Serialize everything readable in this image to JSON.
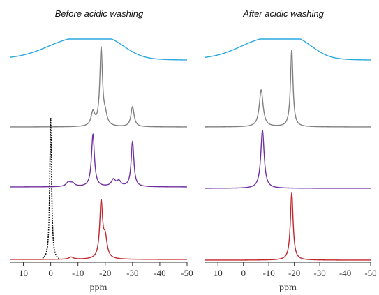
{
  "chart_data": [
    {
      "type": "line",
      "title": "Before acidic washing",
      "xlabel": "ppm",
      "ylabel": "",
      "xlim": [
        15,
        -50
      ],
      "xticks": [
        10,
        0,
        -10,
        -20,
        -30,
        -40,
        -50
      ],
      "tick_labels": [
        "10",
        "0",
        "-10",
        "-20",
        "-30",
        "-40",
        "-50"
      ],
      "series": [
        {
          "color": "#29a8df",
          "style": "solid",
          "peaks": [
            {
              "center": -10,
              "height": 1.0,
              "width": 11
            },
            {
              "center": -22,
              "height": 0.45,
              "width": 6
            }
          ],
          "baseline_left": 0.05,
          "baseline_right": 0.0
        },
        {
          "color": "#808080",
          "style": "solid",
          "peaks": [
            {
              "center": -15.5,
              "height": 0.18,
              "width": 0.8
            },
            {
              "center": -18.5,
              "height": 1.0,
              "width": 0.6
            },
            {
              "center": -20,
              "height": 0.12,
              "width": 0.8
            },
            {
              "center": -30,
              "height": 0.26,
              "width": 0.7
            }
          ]
        },
        {
          "color": "#7030a0",
          "style": "solid",
          "peaks": [
            {
              "center": -6.5,
              "height": 0.08,
              "width": 1.0
            },
            {
              "center": -8,
              "height": 0.06,
              "width": 1.0
            },
            {
              "center": -15.5,
              "height": 1.0,
              "width": 0.65
            },
            {
              "center": -23,
              "height": 0.13,
              "width": 0.9
            },
            {
              "center": -25,
              "height": 0.1,
              "width": 0.9
            },
            {
              "center": -30,
              "height": 0.86,
              "width": 0.6
            }
          ]
        },
        {
          "color": "#c0272d",
          "style": "solid",
          "peaks": [
            {
              "center": -7.5,
              "height": 0.04,
              "width": 1.0
            },
            {
              "center": -18.5,
              "height": 1.0,
              "width": 0.65
            },
            {
              "center": -20,
              "height": 0.35,
              "width": 0.8
            }
          ]
        },
        {
          "color": "#111111",
          "style": "dotted",
          "peaks": [
            {
              "center": 0,
              "height": 1.0,
              "width": 0.4
            }
          ]
        }
      ]
    },
    {
      "type": "line",
      "title": "After acidic washing",
      "xlabel": "ppm",
      "ylabel": "",
      "xlim": [
        15,
        -50
      ],
      "xticks": [
        10,
        0,
        -10,
        -20,
        -30,
        -40,
        -50
      ],
      "tick_labels": [
        "10",
        "0",
        "-10",
        "-20",
        "-30",
        "-40",
        "-50"
      ],
      "series": [
        {
          "color": "#29a8df",
          "style": "solid",
          "peaks": [
            {
              "center": -10,
              "height": 1.0,
              "width": 11
            },
            {
              "center": -22,
              "height": 0.45,
              "width": 6
            }
          ],
          "baseline_left": 0.05,
          "baseline_right": 0.0
        },
        {
          "color": "#808080",
          "style": "solid",
          "peaks": [
            {
              "center": -7,
              "height": 0.48,
              "width": 0.9
            },
            {
              "center": -19,
              "height": 1.0,
              "width": 0.6
            }
          ]
        },
        {
          "color": "#7030a0",
          "style": "solid",
          "peaks": [
            {
              "center": -7.5,
              "height": 1.0,
              "width": 0.8
            }
          ]
        },
        {
          "color": "#c0272d",
          "style": "solid",
          "peaks": [
            {
              "center": -19,
              "height": 1.0,
              "width": 0.65
            }
          ]
        }
      ]
    }
  ]
}
